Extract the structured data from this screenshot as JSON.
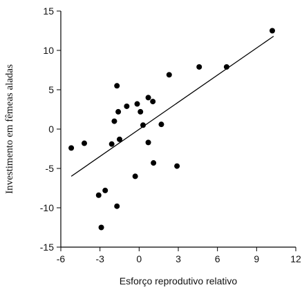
{
  "chart_data": {
    "type": "scatter",
    "xlabel": "Esforço reprodutivo relativo",
    "ylabel": "Investimento em fêmeas aladas",
    "x": [
      -5.2,
      -4.2,
      -3.1,
      -2.9,
      -2.6,
      -2.1,
      -1.9,
      -1.7,
      -1.7,
      -1.6,
      -1.5,
      -0.95,
      -0.3,
      -0.15,
      0.1,
      0.3,
      0.7,
      0.7,
      1.05,
      1.1,
      1.7,
      2.3,
      2.9,
      4.6,
      6.7,
      10.2
    ],
    "values": [
      -2.4,
      -1.8,
      -8.4,
      -12.5,
      -7.8,
      -1.9,
      1.0,
      -9.8,
      5.5,
      2.2,
      -1.3,
      2.9,
      -6.0,
      3.2,
      2.2,
      0.5,
      4.0,
      -1.7,
      3.5,
      -4.3,
      0.6,
      6.9,
      -4.7,
      7.9,
      7.9,
      12.5
    ],
    "color": "#000000",
    "fit": {
      "x": [
        -5.2,
        10.3
      ],
      "values": [
        -6.0,
        11.8
      ]
    },
    "xlim": [
      -6,
      12
    ],
    "xticks": [
      -6,
      -3,
      0,
      3,
      6,
      9,
      12
    ],
    "ylim": [
      -15,
      15
    ],
    "yticks": [
      15,
      10,
      5,
      0,
      -5,
      -10,
      -15
    ]
  }
}
